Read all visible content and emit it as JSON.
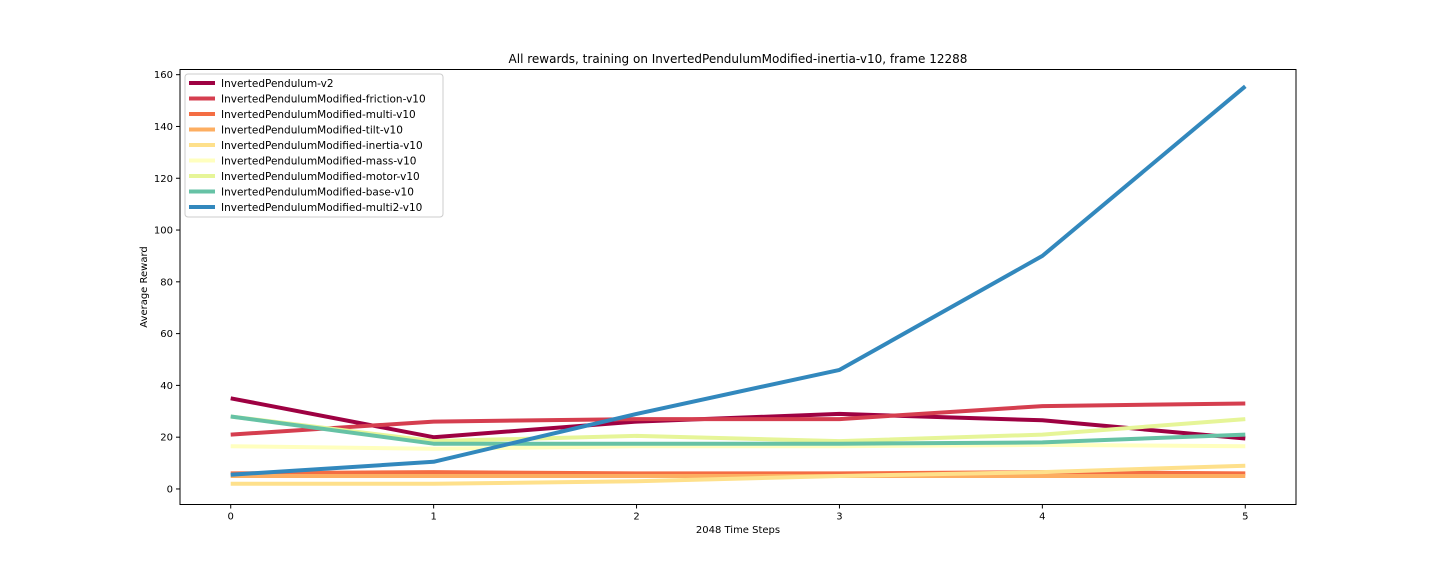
{
  "chart_data": {
    "type": "line",
    "title": "All rewards, training on InvertedPendulumModified-inertia-v10, frame 12288",
    "xlabel": "2048 Time Steps",
    "ylabel": "Average Reward",
    "x": [
      0,
      1,
      2,
      3,
      4,
      5
    ],
    "xlim": [
      -0.25,
      5.25
    ],
    "ylim": [
      -6,
      162
    ],
    "xticks": [
      "0",
      "1",
      "2",
      "3",
      "4",
      "5"
    ],
    "yticks": [
      "0",
      "20",
      "40",
      "60",
      "80",
      "100",
      "120",
      "140",
      "160"
    ],
    "grid": false,
    "legend_position": "top-left",
    "series": [
      {
        "name": "InvertedPendulum-v2",
        "color": "#9e0142",
        "values": [
          35,
          20,
          26,
          29,
          26.5,
          19.5
        ]
      },
      {
        "name": "InvertedPendulumModified-friction-v10",
        "color": "#d53e4f",
        "values": [
          21,
          26,
          27,
          27,
          32,
          33
        ]
      },
      {
        "name": "InvertedPendulumModified-multi-v10",
        "color": "#f46d43",
        "values": [
          6,
          6.5,
          6,
          6,
          6.5,
          6
        ]
      },
      {
        "name": "InvertedPendulumModified-tilt-v10",
        "color": "#fdae61",
        "values": [
          5,
          5,
          5,
          5,
          5,
          5
        ]
      },
      {
        "name": "InvertedPendulumModified-inertia-v10",
        "color": "#fee08b",
        "values": [
          2,
          2,
          3,
          5,
          6.5,
          9
        ]
      },
      {
        "name": "InvertedPendulumModified-mass-v10",
        "color": "#ffffbf",
        "values": [
          16.5,
          15.5,
          16.5,
          16.5,
          17,
          16.5
        ]
      },
      {
        "name": "InvertedPendulumModified-motor-v10",
        "color": "#e6f598",
        "values": [
          28,
          18.5,
          20.5,
          18.5,
          21,
          27
        ]
      },
      {
        "name": "InvertedPendulumModified-base-v10",
        "color": "#66c2a5",
        "values": [
          28,
          17.5,
          17.5,
          17.5,
          18,
          21
        ]
      },
      {
        "name": "InvertedPendulumModified-multi2-v10",
        "color": "#3288bd",
        "values": [
          5.5,
          10.5,
          29,
          46,
          90,
          155.5
        ]
      }
    ]
  }
}
